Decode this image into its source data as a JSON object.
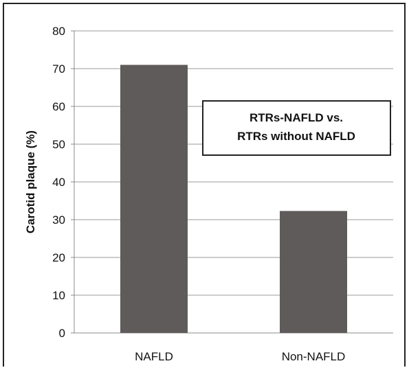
{
  "chart_data": {
    "type": "bar",
    "title": "",
    "xlabel": "",
    "ylabel": "Carotid plaque (%)",
    "ylim": [
      0,
      80
    ],
    "yticks": [
      0,
      10,
      20,
      30,
      40,
      50,
      60,
      70,
      80
    ],
    "grid": true,
    "categories": [
      "NAFLD",
      "Non-NAFLD"
    ],
    "values": [
      71,
      32.3
    ],
    "bar_color": "#5f5b5a",
    "annotation": {
      "line1": "RTRs-NAFLD vs.",
      "line2": "RTRs without NAFLD"
    }
  }
}
